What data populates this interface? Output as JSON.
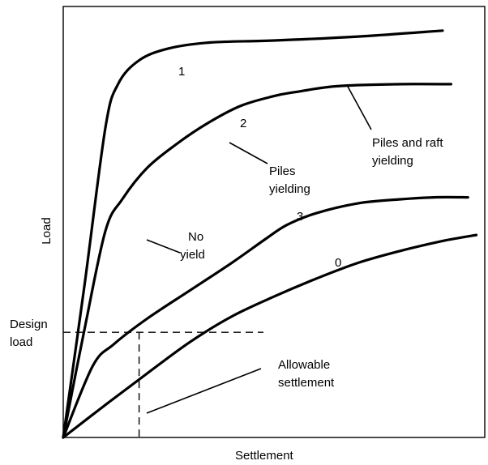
{
  "chart_data": {
    "type": "line",
    "xlabel": "Settlement",
    "ylabel": "Load",
    "xlim": [
      0,
      1
    ],
    "ylim": [
      0,
      1
    ],
    "grid": false,
    "series": [
      {
        "name": "1",
        "x": [
          0,
          0.05,
          0.1,
          0.13,
          0.18,
          0.25,
          0.35,
          0.5,
          0.7,
          0.9
        ],
        "y": [
          0,
          0.38,
          0.78,
          0.89,
          0.95,
          0.98,
          0.995,
          1.0,
          1.01,
          1.025
        ]
      },
      {
        "name": "2",
        "x": [
          0,
          0.05,
          0.1,
          0.14,
          0.2,
          0.27,
          0.34,
          0.42,
          0.5,
          0.55,
          0.65,
          0.8,
          0.92
        ],
        "y": [
          0,
          0.27,
          0.52,
          0.6,
          0.68,
          0.74,
          0.79,
          0.835,
          0.86,
          0.87,
          0.885,
          0.89,
          0.89
        ]
      },
      {
        "name": "3",
        "x": [
          0,
          0.07,
          0.12,
          0.2,
          0.3,
          0.4,
          0.48,
          0.53,
          0.6,
          0.7,
          0.8,
          0.88,
          0.96
        ],
        "y": [
          0,
          0.18,
          0.235,
          0.3,
          0.37,
          0.44,
          0.5,
          0.535,
          0.565,
          0.59,
          0.6,
          0.605,
          0.605
        ]
      },
      {
        "name": "0",
        "x": [
          0,
          0.1,
          0.2,
          0.3,
          0.4,
          0.5,
          0.6,
          0.7,
          0.8,
          0.9,
          0.98
        ],
        "y": [
          0,
          0.082,
          0.162,
          0.24,
          0.305,
          0.355,
          0.4,
          0.44,
          0.47,
          0.495,
          0.51
        ]
      }
    ],
    "annotations": {
      "pile_raft_yielding": "Piles and raft yielding",
      "piles_yielding": "Piles yielding",
      "no_yield": "No yield",
      "design_load": "Design load",
      "allowable_settlement": "Allowable settlement"
    },
    "design_load_y": 0.265,
    "allowable_settlement_x": 0.18
  }
}
